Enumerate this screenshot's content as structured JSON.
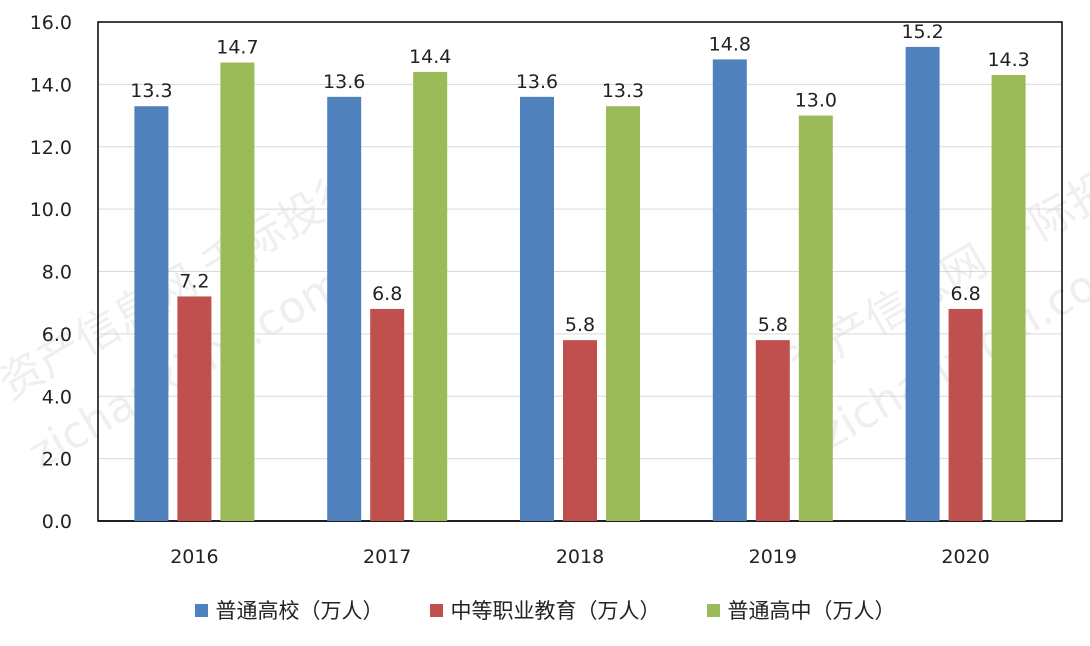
{
  "chart_data": {
    "type": "bar",
    "title": "",
    "xlabel": "",
    "ylabel": "",
    "categories": [
      "2016",
      "2017",
      "2018",
      "2019",
      "2020"
    ],
    "ylim": [
      0,
      16
    ],
    "yticks": [
      "0.0",
      "2.0",
      "4.0",
      "6.0",
      "8.0",
      "10.0",
      "12.0",
      "14.0",
      "16.0"
    ],
    "grid": true,
    "legend_position": "bottom",
    "series": [
      {
        "name": "普通高校（万人）",
        "color": "#4f81bd",
        "values": [
          13.3,
          13.6,
          13.6,
          14.8,
          15.2
        ],
        "labels": [
          "13.3",
          "13.6",
          "13.6",
          "14.8",
          "15.2"
        ]
      },
      {
        "name": "中等职业教育（万人）",
        "color": "#c0504d",
        "values": [
          7.2,
          6.8,
          5.8,
          5.8,
          6.8
        ],
        "labels": [
          "7.2",
          "6.8",
          "5.8",
          "5.8",
          "6.8"
        ]
      },
      {
        "name": "普通高中（万人）",
        "color": "#9bbb59",
        "values": [
          14.7,
          14.4,
          13.3,
          13.0,
          14.3
        ],
        "labels": [
          "14.7",
          "14.4",
          "13.3",
          "13.0",
          "14.3"
        ]
      }
    ]
  },
  "watermark": {
    "text_cn": "资产信息网 千际投行",
    "text_en": "zichanxinxi.com"
  }
}
